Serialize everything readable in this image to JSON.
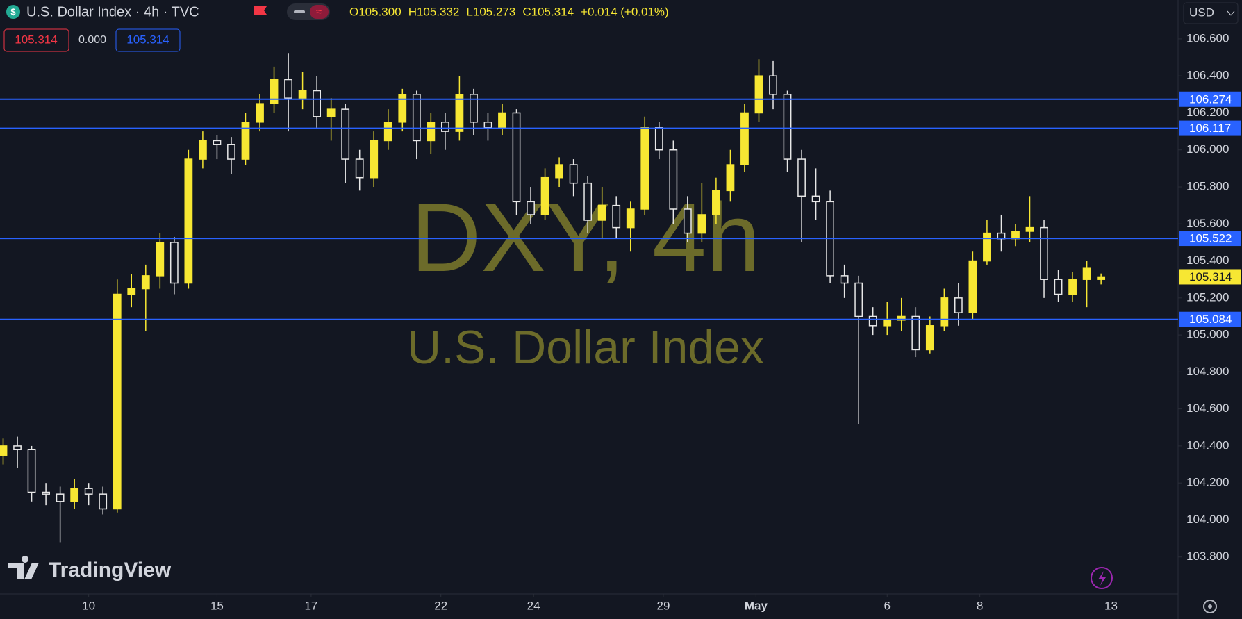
{
  "header": {
    "title": "U.S. Dollar Index · 4h · TVC",
    "ohlc": [
      "O105.300",
      "H105.332",
      "L105.273",
      "C105.314",
      "+0.014 (+0.01%)"
    ],
    "bid": "105.314",
    "spread": "0.000",
    "ask": "105.314",
    "currency": "USD",
    "logo": "TradingView"
  },
  "chart_data": {
    "type": "candlestick",
    "watermark": "DXY, 4h",
    "watermark_subtitle": "U.S. Dollar Index",
    "up_color": "#f7e733",
    "down_color": "#e8e8e8",
    "level_color": "#2962ff",
    "price_color": "#f7e733",
    "grid": false,
    "ylim": [
      103.6,
      106.81
    ],
    "yticks": [
      {
        "value": 103.8,
        "label": "103.800"
      },
      {
        "value": 104,
        "label": "104.000"
      },
      {
        "value": 104.2,
        "label": "104.200"
      },
      {
        "value": 104.4,
        "label": "104.400"
      },
      {
        "value": 104.6,
        "label": "104.600"
      },
      {
        "value": 104.8,
        "label": "104.800"
      },
      {
        "value": 105,
        "label": "105.000"
      },
      {
        "value": 105.2,
        "label": "105.200"
      },
      {
        "value": 105.4,
        "label": "105.400"
      },
      {
        "value": 105.6,
        "label": "105.600"
      },
      {
        "value": 105.8,
        "label": "105.800"
      },
      {
        "value": 106,
        "label": "106.000"
      },
      {
        "value": 106.2,
        "label": "106.200"
      },
      {
        "value": 106.4,
        "label": "106.400"
      },
      {
        "value": 106.6,
        "label": "106.600"
      }
    ],
    "xlim": [
      -0.22,
      82.4
    ],
    "xticks": [
      {
        "value": 6,
        "label": "10"
      },
      {
        "value": 15,
        "label": "15"
      },
      {
        "value": 21.6,
        "label": "17"
      },
      {
        "value": 30.7,
        "label": "22"
      },
      {
        "value": 37.2,
        "label": "24"
      },
      {
        "value": 46.3,
        "label": "29"
      },
      {
        "value": 52.8,
        "label": "May"
      },
      {
        "value": 62,
        "label": "6"
      },
      {
        "value": 68.5,
        "label": "8"
      },
      {
        "value": 77.7,
        "label": "13"
      }
    ],
    "levels": [
      106.274,
      106.117,
      105.522,
      105.084
    ],
    "last_price": 105.314,
    "candles": [
      [
        104.35,
        104.44,
        104.3,
        104.4
      ],
      [
        104.4,
        104.45,
        104.28,
        104.38
      ],
      [
        104.38,
        104.4,
        104.1,
        104.15
      ],
      [
        104.15,
        104.2,
        104.08,
        104.14
      ],
      [
        104.14,
        104.18,
        103.88,
        104.1
      ],
      [
        104.1,
        104.22,
        104.06,
        104.17
      ],
      [
        104.17,
        104.2,
        104.08,
        104.14
      ],
      [
        104.14,
        104.18,
        104.03,
        104.06
      ],
      [
        104.06,
        105.3,
        104.04,
        105.22
      ],
      [
        105.22,
        105.33,
        105.15,
        105.25
      ],
      [
        105.25,
        105.38,
        105.02,
        105.32
      ],
      [
        105.32,
        105.55,
        105.25,
        105.5
      ],
      [
        105.5,
        105.53,
        105.22,
        105.28
      ],
      [
        105.28,
        106.0,
        105.25,
        105.95
      ],
      [
        105.95,
        106.1,
        105.9,
        106.05
      ],
      [
        106.05,
        106.08,
        105.95,
        106.03
      ],
      [
        106.03,
        106.07,
        105.87,
        105.95
      ],
      [
        105.95,
        106.2,
        105.92,
        106.15
      ],
      [
        106.15,
        106.3,
        106.1,
        106.25
      ],
      [
        106.25,
        106.45,
        106.2,
        106.38
      ],
      [
        106.38,
        106.52,
        106.1,
        106.28
      ],
      [
        106.28,
        106.42,
        106.22,
        106.32
      ],
      [
        106.32,
        106.4,
        106.12,
        106.18
      ],
      [
        106.18,
        106.28,
        106.05,
        106.22
      ],
      [
        106.22,
        106.25,
        105.82,
        105.95
      ],
      [
        105.95,
        106.0,
        105.78,
        105.85
      ],
      [
        105.85,
        106.1,
        105.8,
        106.05
      ],
      [
        106.05,
        106.22,
        106.0,
        106.15
      ],
      [
        106.15,
        106.33,
        106.1,
        106.3
      ],
      [
        106.3,
        106.32,
        105.95,
        106.05
      ],
      [
        106.05,
        106.2,
        105.98,
        106.15
      ],
      [
        106.15,
        106.2,
        106.0,
        106.1
      ],
      [
        106.1,
        106.4,
        106.05,
        106.3
      ],
      [
        106.3,
        106.33,
        106.08,
        106.15
      ],
      [
        106.15,
        106.2,
        106.05,
        106.12
      ],
      [
        106.12,
        106.25,
        106.08,
        106.2
      ],
      [
        106.2,
        106.22,
        105.65,
        105.72
      ],
      [
        105.72,
        105.8,
        105.6,
        105.65
      ],
      [
        105.65,
        105.9,
        105.62,
        105.85
      ],
      [
        105.85,
        105.96,
        105.8,
        105.92
      ],
      [
        105.92,
        105.95,
        105.75,
        105.82
      ],
      [
        105.82,
        105.86,
        105.55,
        105.62
      ],
      [
        105.62,
        105.8,
        105.52,
        105.7
      ],
      [
        105.7,
        105.75,
        105.52,
        105.58
      ],
      [
        105.58,
        105.72,
        105.45,
        105.68
      ],
      [
        105.68,
        106.18,
        105.65,
        106.12
      ],
      [
        106.12,
        106.15,
        105.95,
        106.0
      ],
      [
        106.0,
        106.05,
        105.6,
        105.68
      ],
      [
        105.68,
        105.75,
        105.5,
        105.55
      ],
      [
        105.55,
        105.82,
        105.5,
        105.65
      ],
      [
        105.65,
        105.85,
        105.6,
        105.78
      ],
      [
        105.78,
        106.0,
        105.72,
        105.92
      ],
      [
        105.92,
        106.25,
        105.88,
        106.2
      ],
      [
        106.2,
        106.49,
        106.15,
        106.4
      ],
      [
        106.4,
        106.48,
        106.22,
        106.3
      ],
      [
        106.3,
        106.32,
        105.88,
        105.95
      ],
      [
        105.95,
        106.0,
        105.5,
        105.75
      ],
      [
        105.75,
        105.9,
        105.62,
        105.72
      ],
      [
        105.72,
        105.78,
        105.28,
        105.32
      ],
      [
        105.32,
        105.38,
        105.2,
        105.28
      ],
      [
        105.28,
        105.32,
        104.52,
        105.1
      ],
      [
        105.1,
        105.15,
        105.0,
        105.05
      ],
      [
        105.05,
        105.18,
        105.0,
        105.08
      ],
      [
        105.08,
        105.2,
        105.02,
        105.1
      ],
      [
        105.1,
        105.15,
        104.88,
        104.92
      ],
      [
        104.92,
        105.1,
        104.9,
        105.05
      ],
      [
        105.05,
        105.25,
        105.02,
        105.2
      ],
      [
        105.2,
        105.28,
        105.05,
        105.12
      ],
      [
        105.12,
        105.45,
        105.08,
        105.4
      ],
      [
        105.4,
        105.62,
        105.38,
        105.55
      ],
      [
        105.55,
        105.65,
        105.45,
        105.52
      ],
      [
        105.52,
        105.6,
        105.48,
        105.56
      ],
      [
        105.56,
        105.75,
        105.5,
        105.58
      ],
      [
        105.58,
        105.62,
        105.2,
        105.3
      ],
      [
        105.3,
        105.35,
        105.18,
        105.22
      ],
      [
        105.22,
        105.34,
        105.18,
        105.3
      ],
      [
        105.3,
        105.4,
        105.15,
        105.36
      ],
      [
        105.3,
        105.332,
        105.273,
        105.314
      ]
    ]
  }
}
